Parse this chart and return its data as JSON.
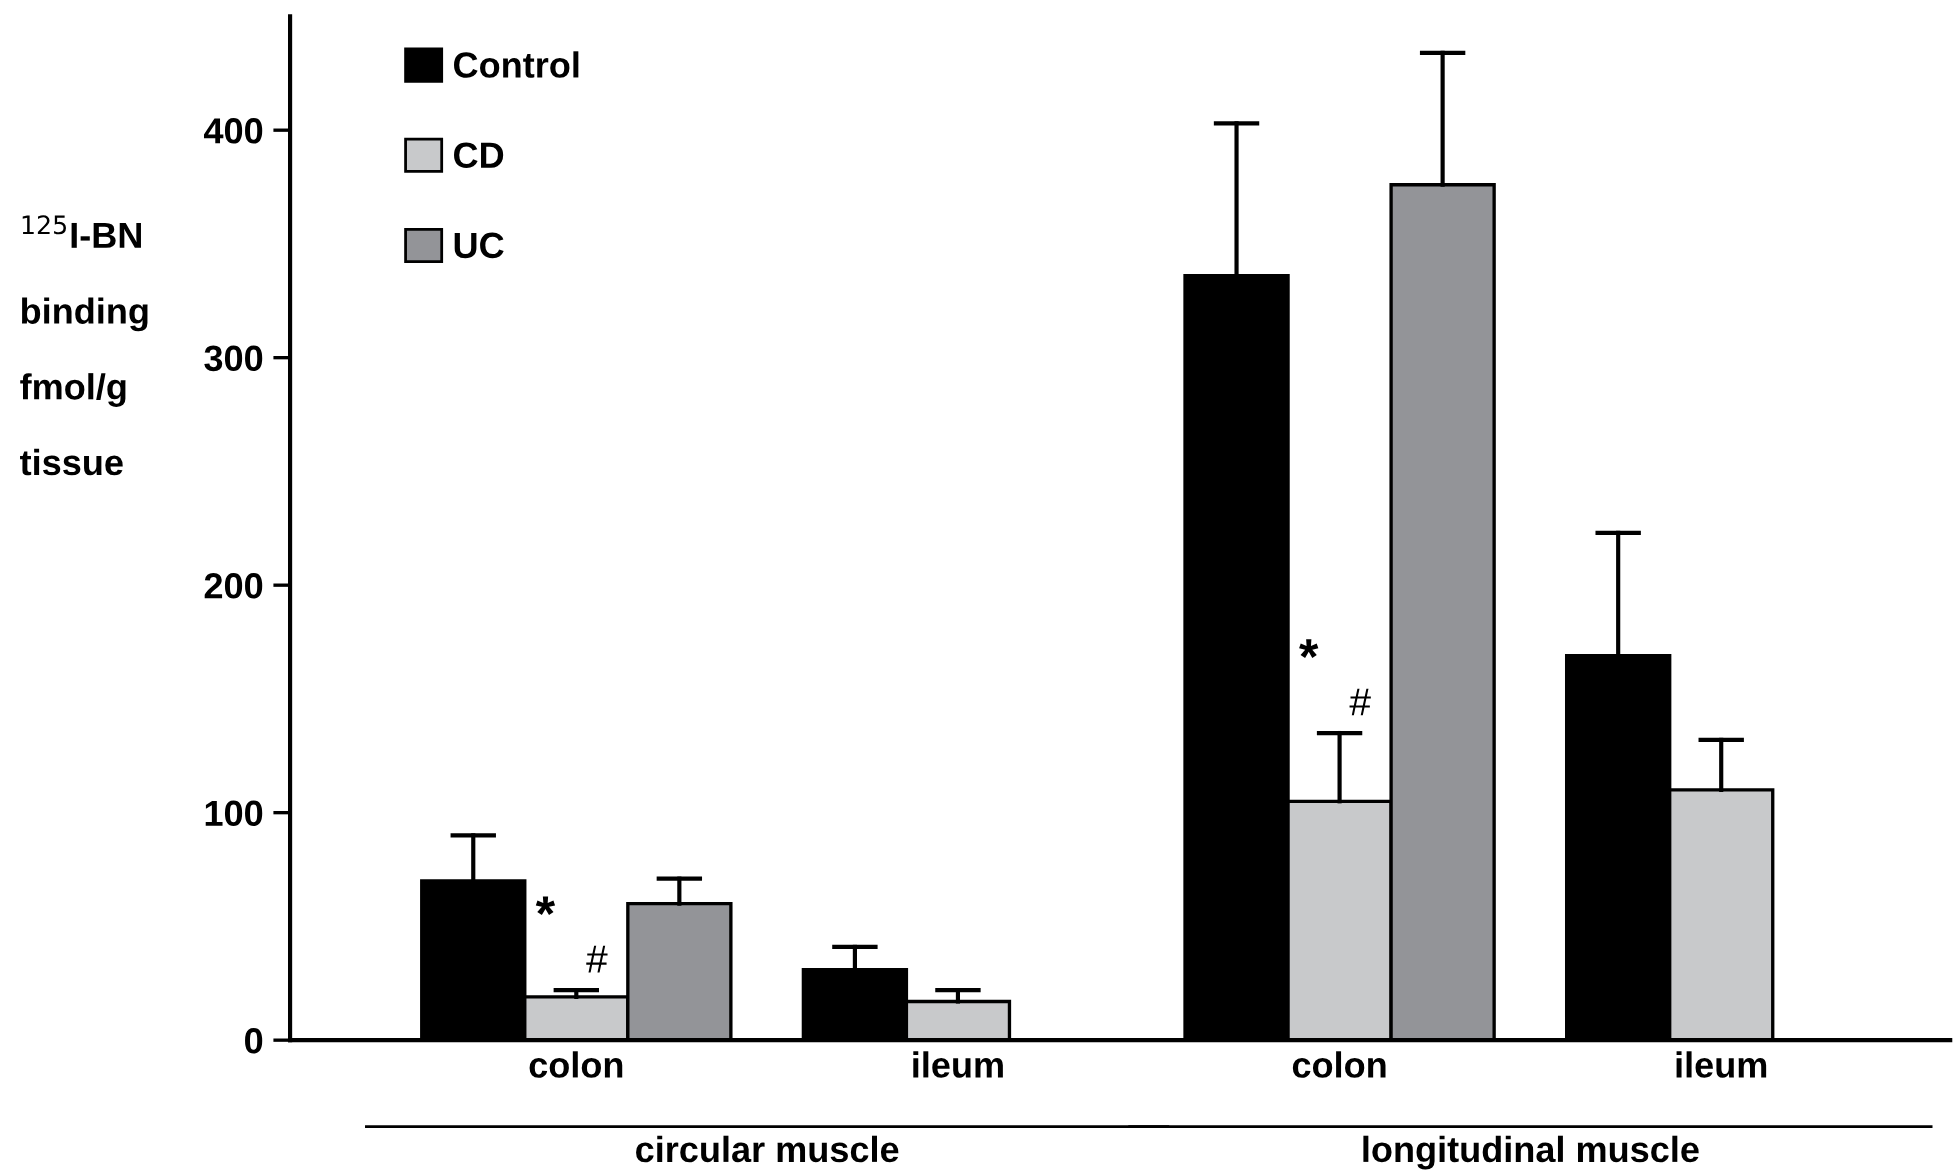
{
  "chart_data": {
    "type": "bar",
    "ylabel": "$^{125}$I-BN\nbinding\nfmol/g\ntissue",
    "categories": [
      "colon",
      "ileum",
      "colon",
      "ileum"
    ],
    "series": [
      {
        "name": "Control",
        "color": "#000000",
        "values": [
          70,
          31,
          336,
          169
        ],
        "errors": [
          [
            70,
            90
          ],
          [
            31,
            41
          ],
          [
            336,
            403
          ],
          [
            169,
            223
          ]
        ]
      },
      {
        "name": "CD",
        "color": "#c8c9cb",
        "values": [
          19,
          17,
          105,
          110
        ],
        "errors": [
          [
            19,
            22
          ],
          [
            17,
            22
          ],
          [
            105,
            135
          ],
          [
            110,
            132
          ]
        ]
      },
      {
        "name": "UC",
        "color": "#939498",
        "values": [
          60,
          null,
          376,
          null
        ],
        "errors": [
          [
            60,
            71
          ],
          null,
          [
            376,
            434
          ],
          null
        ]
      }
    ],
    "ylim": [
      0,
      450
    ],
    "yticks": [
      0,
      100,
      200,
      300,
      400
    ],
    "legend": "top left",
    "grid": false,
    "annotations": [
      "*",
      "#",
      "*",
      "#",
      "circular muscle",
      "longitudinal muscle"
    ]
  }
}
